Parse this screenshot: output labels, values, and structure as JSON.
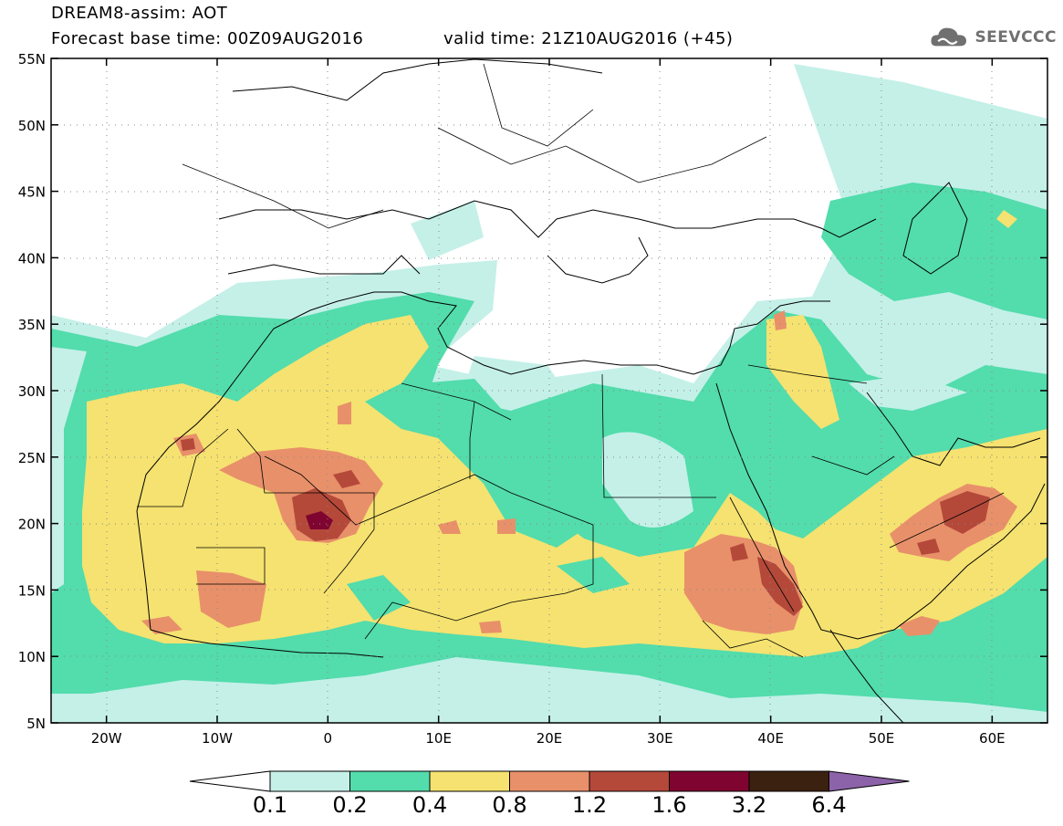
{
  "header": {
    "line1": "DREAM8-assim: AOT",
    "base_time": "Forecast base time: 00Z09AUG2016",
    "valid_time": "valid time: 21Z10AUG2016 (+45)"
  },
  "logo": {
    "text": "SEEVCCC",
    "icon": "cloud-icon"
  },
  "axes": {
    "lat_labels": [
      "55N",
      "50N",
      "45N",
      "40N",
      "35N",
      "30N",
      "25N",
      "20N",
      "15N",
      "10N",
      "5N"
    ],
    "lon_labels": [
      "20W",
      "10W",
      "0",
      "10E",
      "20E",
      "30E",
      "40E",
      "50E",
      "60E"
    ],
    "lat_range": [
      5,
      55
    ],
    "lon_range": [
      -25,
      65
    ]
  },
  "colorbar": {
    "labels": [
      "0.1",
      "0.2",
      "0.4",
      "0.8",
      "1.2",
      "1.6",
      "3.2",
      "6.4"
    ],
    "colors": [
      "#ffffff",
      "#c4f0e8",
      "#53dcac",
      "#f5e270",
      "#e8906a",
      "#b4493a",
      "#7f0530",
      "#3b2110",
      "#8c63a8"
    ]
  }
}
